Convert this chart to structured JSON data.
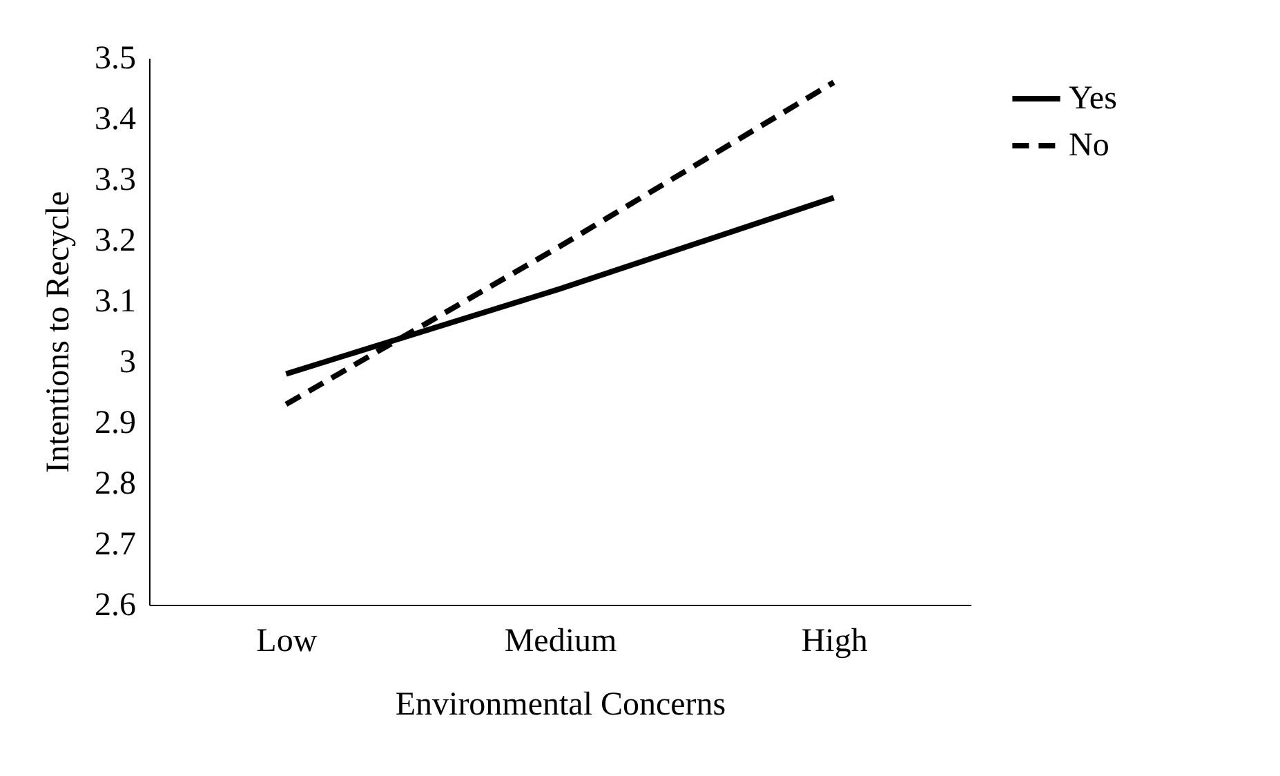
{
  "chart_data": {
    "type": "line",
    "xlabel": "Environmental Concerns",
    "ylabel": "Intentions to Recycle",
    "categories": [
      "Low",
      "Medium",
      "High"
    ],
    "series": [
      {
        "name": "Yes",
        "color": "#000000",
        "line_style": "solid",
        "values": [
          2.98,
          3.12,
          3.27
        ]
      },
      {
        "name": "No",
        "color": "#000000",
        "line_style": "dashed",
        "values": [
          2.93,
          3.19,
          3.46
        ]
      }
    ],
    "ylim": [
      2.6,
      3.5
    ],
    "yticks": [
      2.6,
      2.7,
      2.8,
      2.9,
      3,
      3.1,
      3.2,
      3.3,
      3.4,
      3.5
    ],
    "grid": false,
    "legend": "right",
    "marker": "none"
  }
}
